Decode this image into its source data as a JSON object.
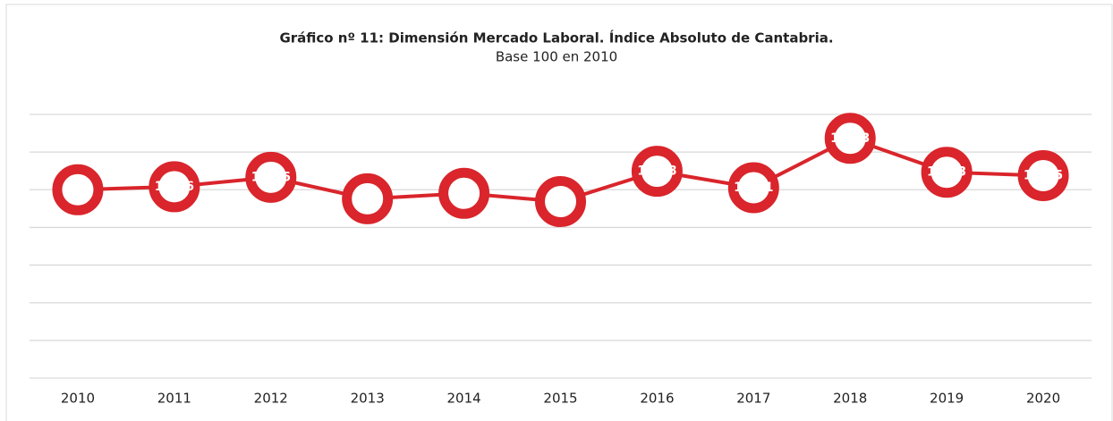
{
  "chart_data": {
    "type": "line",
    "title": "Gráfico nº 11: Dimensión Mercado Laboral. Índice Absoluto de Cantabria.",
    "subtitle": "Base 100 en 2010",
    "categories": [
      "2010",
      "2011",
      "2012",
      "2013",
      "2014",
      "2015",
      "2016",
      "2017",
      "2018",
      "2019",
      "2020"
    ],
    "series": [
      {
        "color": "#d9252b",
        "values": [
          100,
          101.6,
          106.6,
          95.2,
          98.1,
          93.7,
          109.8,
          101.1,
          127.3,
          109.3,
          107.5
        ]
      }
    ],
    "ylim": [
      0,
      140
    ],
    "yticks": [
      0,
      20,
      40,
      60,
      80,
      100,
      120,
      140
    ],
    "grid": true
  }
}
